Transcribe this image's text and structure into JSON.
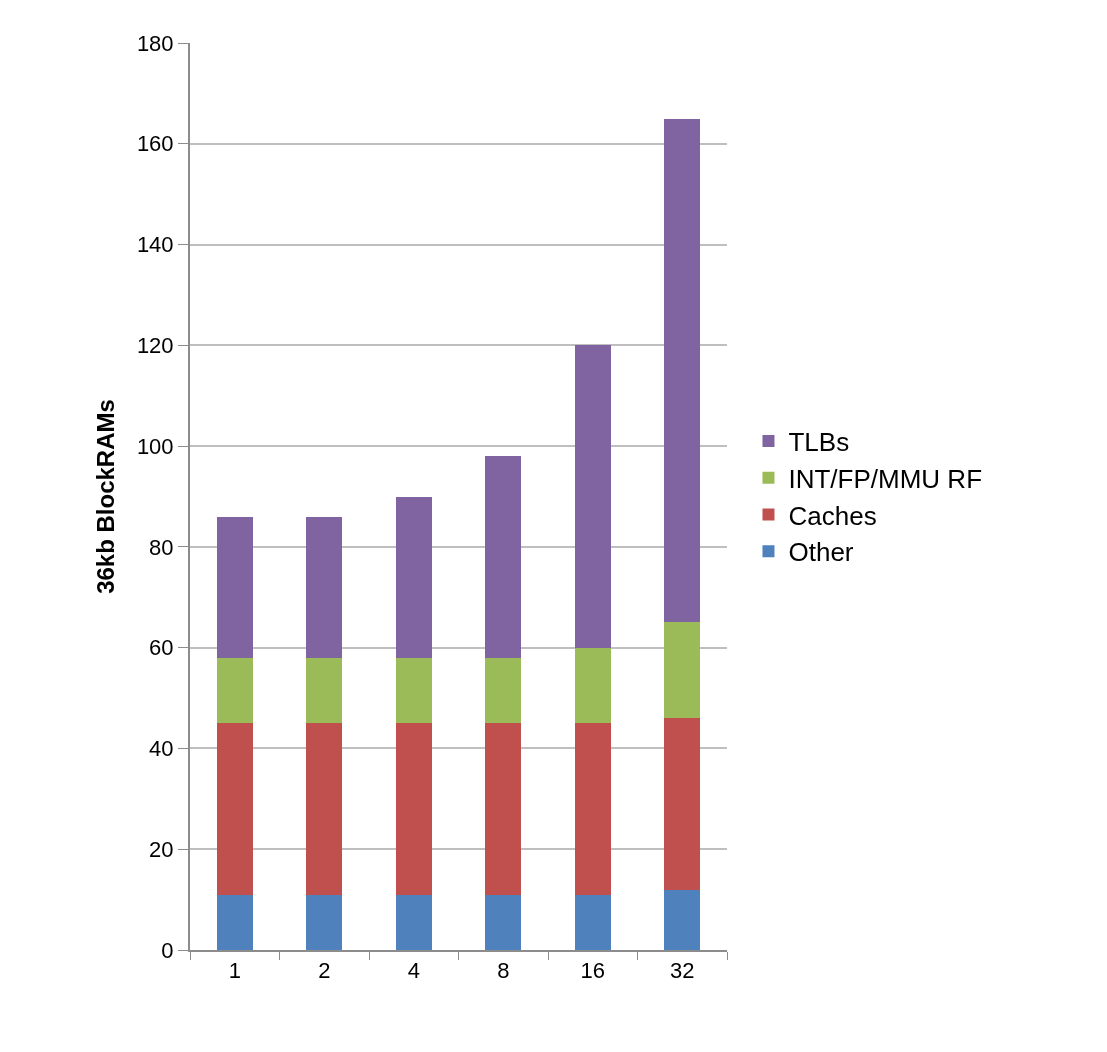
{
  "chart_data": {
    "type": "bar",
    "stacked": true,
    "ylabel": "36kb BlockRAMs",
    "categories": [
      "1",
      "2",
      "4",
      "8",
      "16",
      "32"
    ],
    "series": [
      {
        "name": "Other",
        "color": "#4f81bd",
        "values": [
          11,
          11,
          11,
          11,
          11,
          12
        ]
      },
      {
        "name": "Caches",
        "color": "#c0504d",
        "values": [
          34,
          34,
          34,
          34,
          34,
          34
        ]
      },
      {
        "name": "INT/FP/MMU RF",
        "color": "#9bbb59",
        "values": [
          13,
          13,
          13,
          13,
          15,
          19
        ]
      },
      {
        "name": "TLBs",
        "color": "#8064a2",
        "values": [
          28,
          28,
          32,
          40,
          60,
          100
        ]
      }
    ],
    "ylim": [
      0,
      180
    ],
    "yticks": [
      0,
      20,
      40,
      60,
      80,
      100,
      120,
      140,
      160,
      180
    ],
    "grid": "y",
    "legend": "right"
  }
}
